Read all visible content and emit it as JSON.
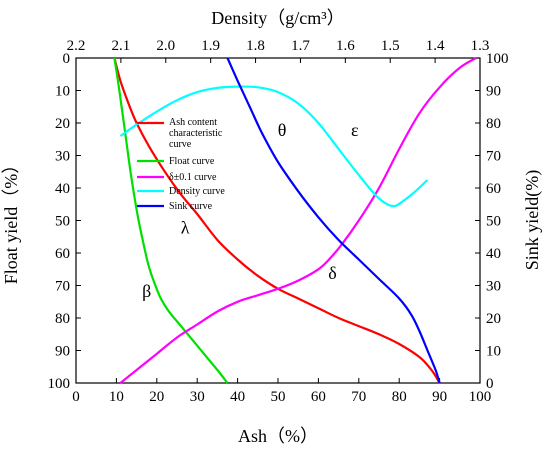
{
  "chart_data": {
    "type": "line",
    "axes": {
      "bottom": {
        "label": "Ash（%）",
        "range": [
          0,
          100
        ],
        "ticks": [
          "0",
          "10",
          "20",
          "30",
          "40",
          "50",
          "60",
          "70",
          "80",
          "90",
          "100"
        ]
      },
      "left": {
        "label": "Float yield（%）",
        "range": [
          0,
          100
        ],
        "reversed": true,
        "ticks": [
          "0",
          "10",
          "20",
          "30",
          "40",
          "50",
          "60",
          "70",
          "80",
          "90",
          "100"
        ]
      },
      "right": {
        "label": "Sink yield(%)",
        "range": [
          0,
          100
        ],
        "ticks": [
          "0",
          "10",
          "20",
          "30",
          "40",
          "50",
          "60",
          "70",
          "80",
          "90",
          "100"
        ]
      },
      "top": {
        "label": "Density（g/cm³）",
        "range": [
          2.2,
          1.3
        ],
        "ticks": [
          "2.2",
          "2.1",
          "2.0",
          "1.9",
          "1.8",
          "1.7",
          "1.6",
          "1.5",
          "1.4",
          "1.3"
        ]
      }
    },
    "grid": false,
    "legend_position": "center-left",
    "series": [
      {
        "name": "Ash content characteristic curve",
        "color": "#ff0000",
        "x_axis": "bottom",
        "y_axis": "left",
        "x": [
          9.5,
          11,
          13,
          15,
          18,
          22,
          26,
          30,
          35,
          40,
          45,
          50,
          55,
          60,
          65,
          70,
          75,
          80,
          85,
          88,
          90
        ],
        "y": [
          0,
          7,
          14,
          20,
          27,
          35,
          42,
          48,
          56,
          62,
          67,
          71,
          74,
          77,
          80,
          82.5,
          85,
          88,
          92,
          96,
          100
        ]
      },
      {
        "name": "Float curve",
        "color": "#00e000",
        "x_axis": "bottom",
        "y_axis": "left",
        "x": [
          9.5,
          10.5,
          11.5,
          12.5,
          13.5,
          14.5,
          15.5,
          16.5,
          18,
          19.5,
          21,
          23,
          26,
          29,
          32,
          35,
          37.5
        ],
        "y": [
          0,
          8,
          17,
          26,
          35,
          43,
          50,
          56,
          64,
          69.5,
          74,
          78,
          82.5,
          87,
          91.5,
          96,
          100
        ]
      },
      {
        "name": "δ±0.1 curve",
        "color": "#ff00ff",
        "x_axis": "bottom",
        "y_axis": "right",
        "x": [
          11,
          15,
          20,
          25,
          30,
          35,
          40,
          45,
          50,
          55,
          60,
          63,
          66,
          70,
          75,
          80,
          85,
          90,
          95,
          99
        ],
        "y": [
          0,
          4,
          9,
          14,
          18,
          22,
          25,
          27,
          29,
          31.5,
          35,
          38.5,
          43,
          50,
          60,
          72,
          83,
          91,
          97,
          100
        ]
      },
      {
        "name": "Density curve",
        "color": "#00ffff",
        "x_axis": "bottom",
        "y_axis": "right",
        "x": [
          11,
          15,
          20,
          25,
          30,
          35,
          40,
          45,
          50,
          55,
          60,
          65,
          70,
          74,
          77,
          79,
          81,
          84,
          87
        ],
        "y": [
          76,
          79.5,
          83.5,
          87,
          89.5,
          90.8,
          91.2,
          91,
          89.5,
          86,
          80,
          72,
          64,
          58,
          55,
          54.5,
          56,
          59,
          62.5
        ]
      },
      {
        "name": "Sink curve",
        "color": "#0000ff",
        "x_axis": "bottom",
        "y_axis": "left",
        "x": [
          37.5,
          40,
          43,
          46,
          50,
          55,
          60,
          65,
          70,
          75,
          80,
          83,
          85,
          87,
          89,
          90
        ],
        "y": [
          0,
          7,
          15,
          23,
          32,
          41,
          49,
          56,
          62,
          68,
          74,
          79,
          84,
          90,
          96,
          100
        ]
      }
    ],
    "annotations": [
      {
        "text": "θ",
        "x": 51,
        "y": 24
      },
      {
        "text": "ε",
        "x": 69,
        "y": 24
      },
      {
        "text": "λ",
        "x": 27,
        "y": 54
      },
      {
        "text": "δ",
        "x": 63.5,
        "y": 68
      },
      {
        "text": "β",
        "x": 17.5,
        "y": 73.5
      }
    ]
  }
}
